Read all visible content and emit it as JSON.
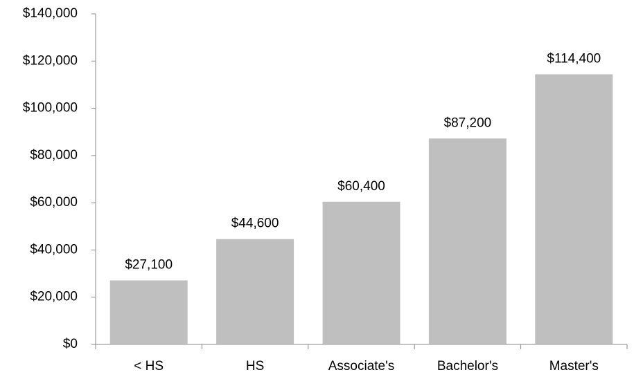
{
  "chart_data": {
    "type": "bar",
    "categories": [
      "< HS",
      "HS",
      "Associate's",
      "Bachelor's",
      "Master's"
    ],
    "values": [
      27100,
      44600,
      60400,
      87200,
      114400
    ],
    "value_labels": [
      "$27,100",
      "$44,600",
      "$60,400",
      "$87,200",
      "$114,400"
    ],
    "color": "#bfbfbf",
    "ylim": [
      0,
      140000
    ],
    "yticks": [
      {
        "value": 0,
        "label": "$0"
      },
      {
        "value": 20000,
        "label": "$20,000"
      },
      {
        "value": 40000,
        "label": "$40,000"
      },
      {
        "value": 60000,
        "label": "$60,000"
      },
      {
        "value": 80000,
        "label": "$80,000"
      },
      {
        "value": 100000,
        "label": "$100,000"
      },
      {
        "value": 120000,
        "label": "$120,000"
      },
      {
        "value": 140000,
        "label": "$140,000"
      }
    ],
    "grid": false
  }
}
